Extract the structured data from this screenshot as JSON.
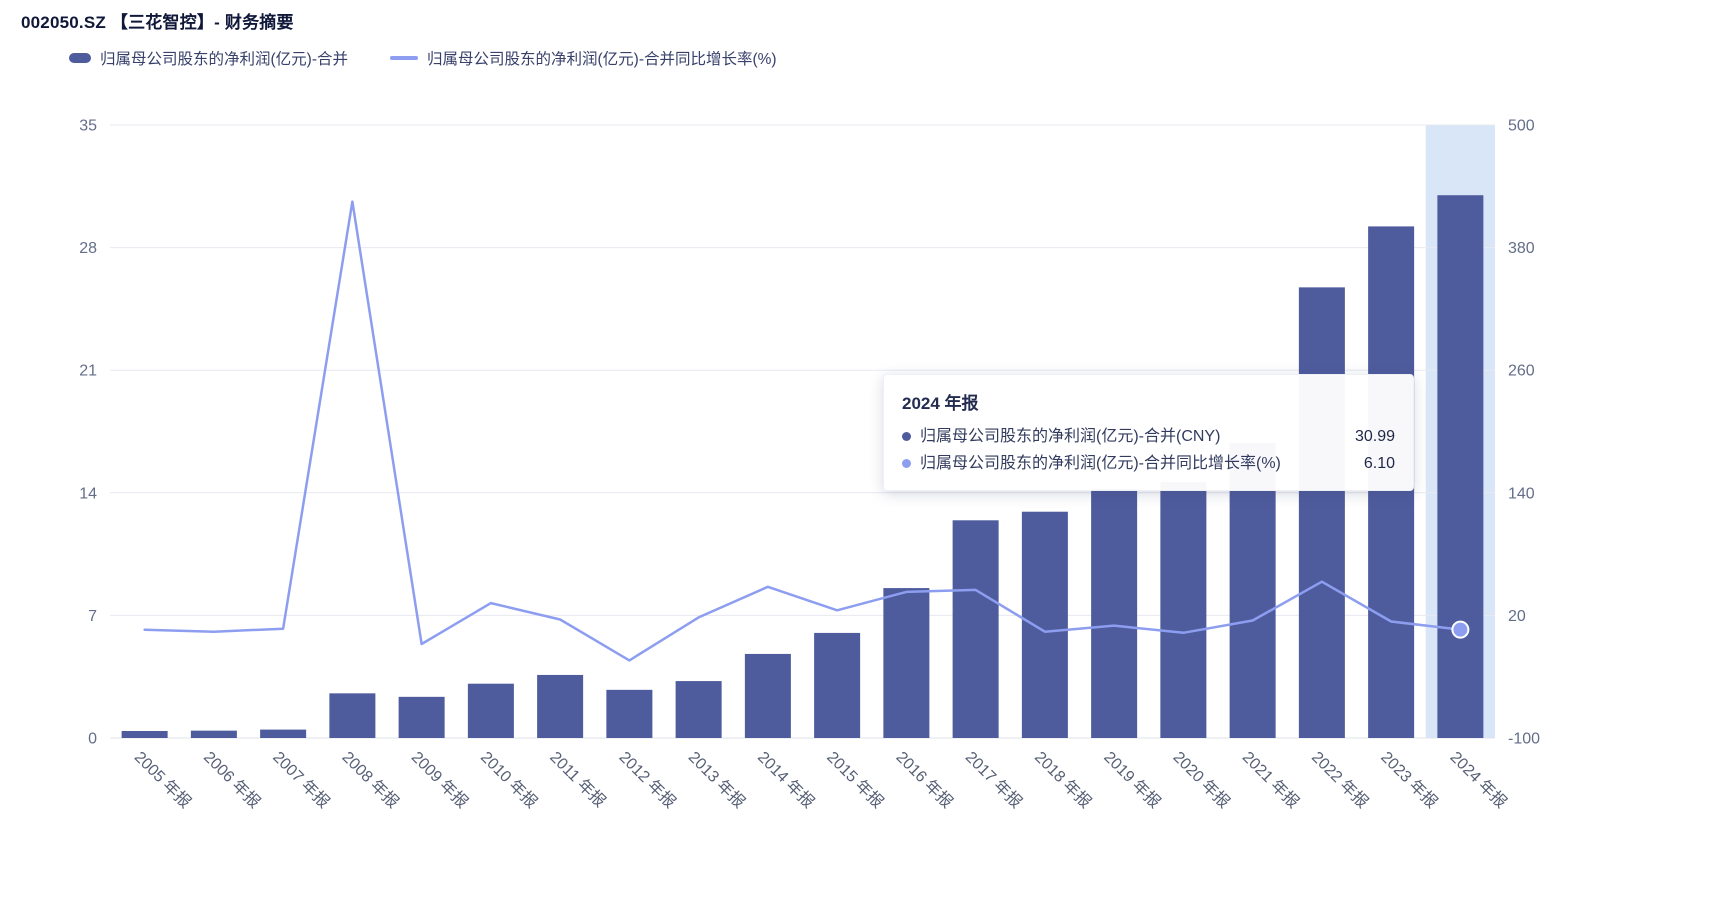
{
  "header": {
    "title": "002050.SZ 【三花智控】- 财务摘要"
  },
  "colors": {
    "bar": "#4e5b9d",
    "line": "#8d9ef0",
    "highlight_band": "#d9e6f8",
    "grid": "#e7eaf1",
    "axis_line": "#dfe3ea"
  },
  "legend": [
    {
      "label": "归属母公司股东的净利润(亿元)-合并",
      "type": "bar",
      "color": "#4e5b9d"
    },
    {
      "label": "归属母公司股东的净利润(亿元)-合并同比增长率(%)",
      "type": "line",
      "color": "#8d9ef0"
    }
  ],
  "tooltip": {
    "title": "2024 年报",
    "rows": [
      {
        "label": "归属母公司股东的净利润(亿元)-合并(CNY)",
        "value": "30.99",
        "color": "#4e5b9d"
      },
      {
        "label": "归属母公司股东的净利润(亿元)-合并同比增长率(%)",
        "value": "6.10",
        "color": "#8d9ef0"
      }
    ]
  },
  "chart_data": {
    "type": "bar+line",
    "title": "002050.SZ 【三花智控】- 财务摘要",
    "categories": [
      "2005 年报",
      "2006 年报",
      "2007 年报",
      "2008 年报",
      "2009 年报",
      "2010 年报",
      "2011 年报",
      "2012 年报",
      "2013 年报",
      "2014 年报",
      "2015 年报",
      "2016 年报",
      "2017 年报",
      "2018 年报",
      "2019 年报",
      "2020 年报",
      "2021 年报",
      "2022 年报",
      "2023 年报",
      "2024 年报"
    ],
    "series": [
      {
        "name": "归属母公司股东的净利润(亿元)-合并",
        "type": "bar",
        "axis": "left",
        "color": "#4e5b9d",
        "values": [
          0.4,
          0.42,
          0.48,
          2.55,
          2.35,
          3.1,
          3.6,
          2.75,
          3.25,
          4.8,
          6.0,
          8.56,
          12.43,
          12.92,
          14.21,
          14.62,
          16.84,
          25.73,
          29.21,
          30.99
        ]
      },
      {
        "name": "归属母公司股东的净利润(亿元)-合并同比增长率(%)",
        "type": "line",
        "axis": "right",
        "color": "#8d9ef0",
        "values": [
          6,
          4,
          7,
          425,
          -8,
          32,
          16,
          -24,
          18,
          48,
          25,
          43,
          45,
          4,
          10,
          3,
          15,
          53,
          14,
          6.1
        ]
      }
    ],
    "left_axis": {
      "range": [
        0,
        35
      ],
      "ticks": [
        0,
        7,
        14,
        21,
        28,
        35
      ]
    },
    "right_axis": {
      "range": [
        -100,
        500
      ],
      "ticks": [
        -100,
        20,
        140,
        260,
        380,
        500
      ]
    },
    "highlight_category": "2024 年报",
    "grid": true,
    "legend_position": "top"
  }
}
